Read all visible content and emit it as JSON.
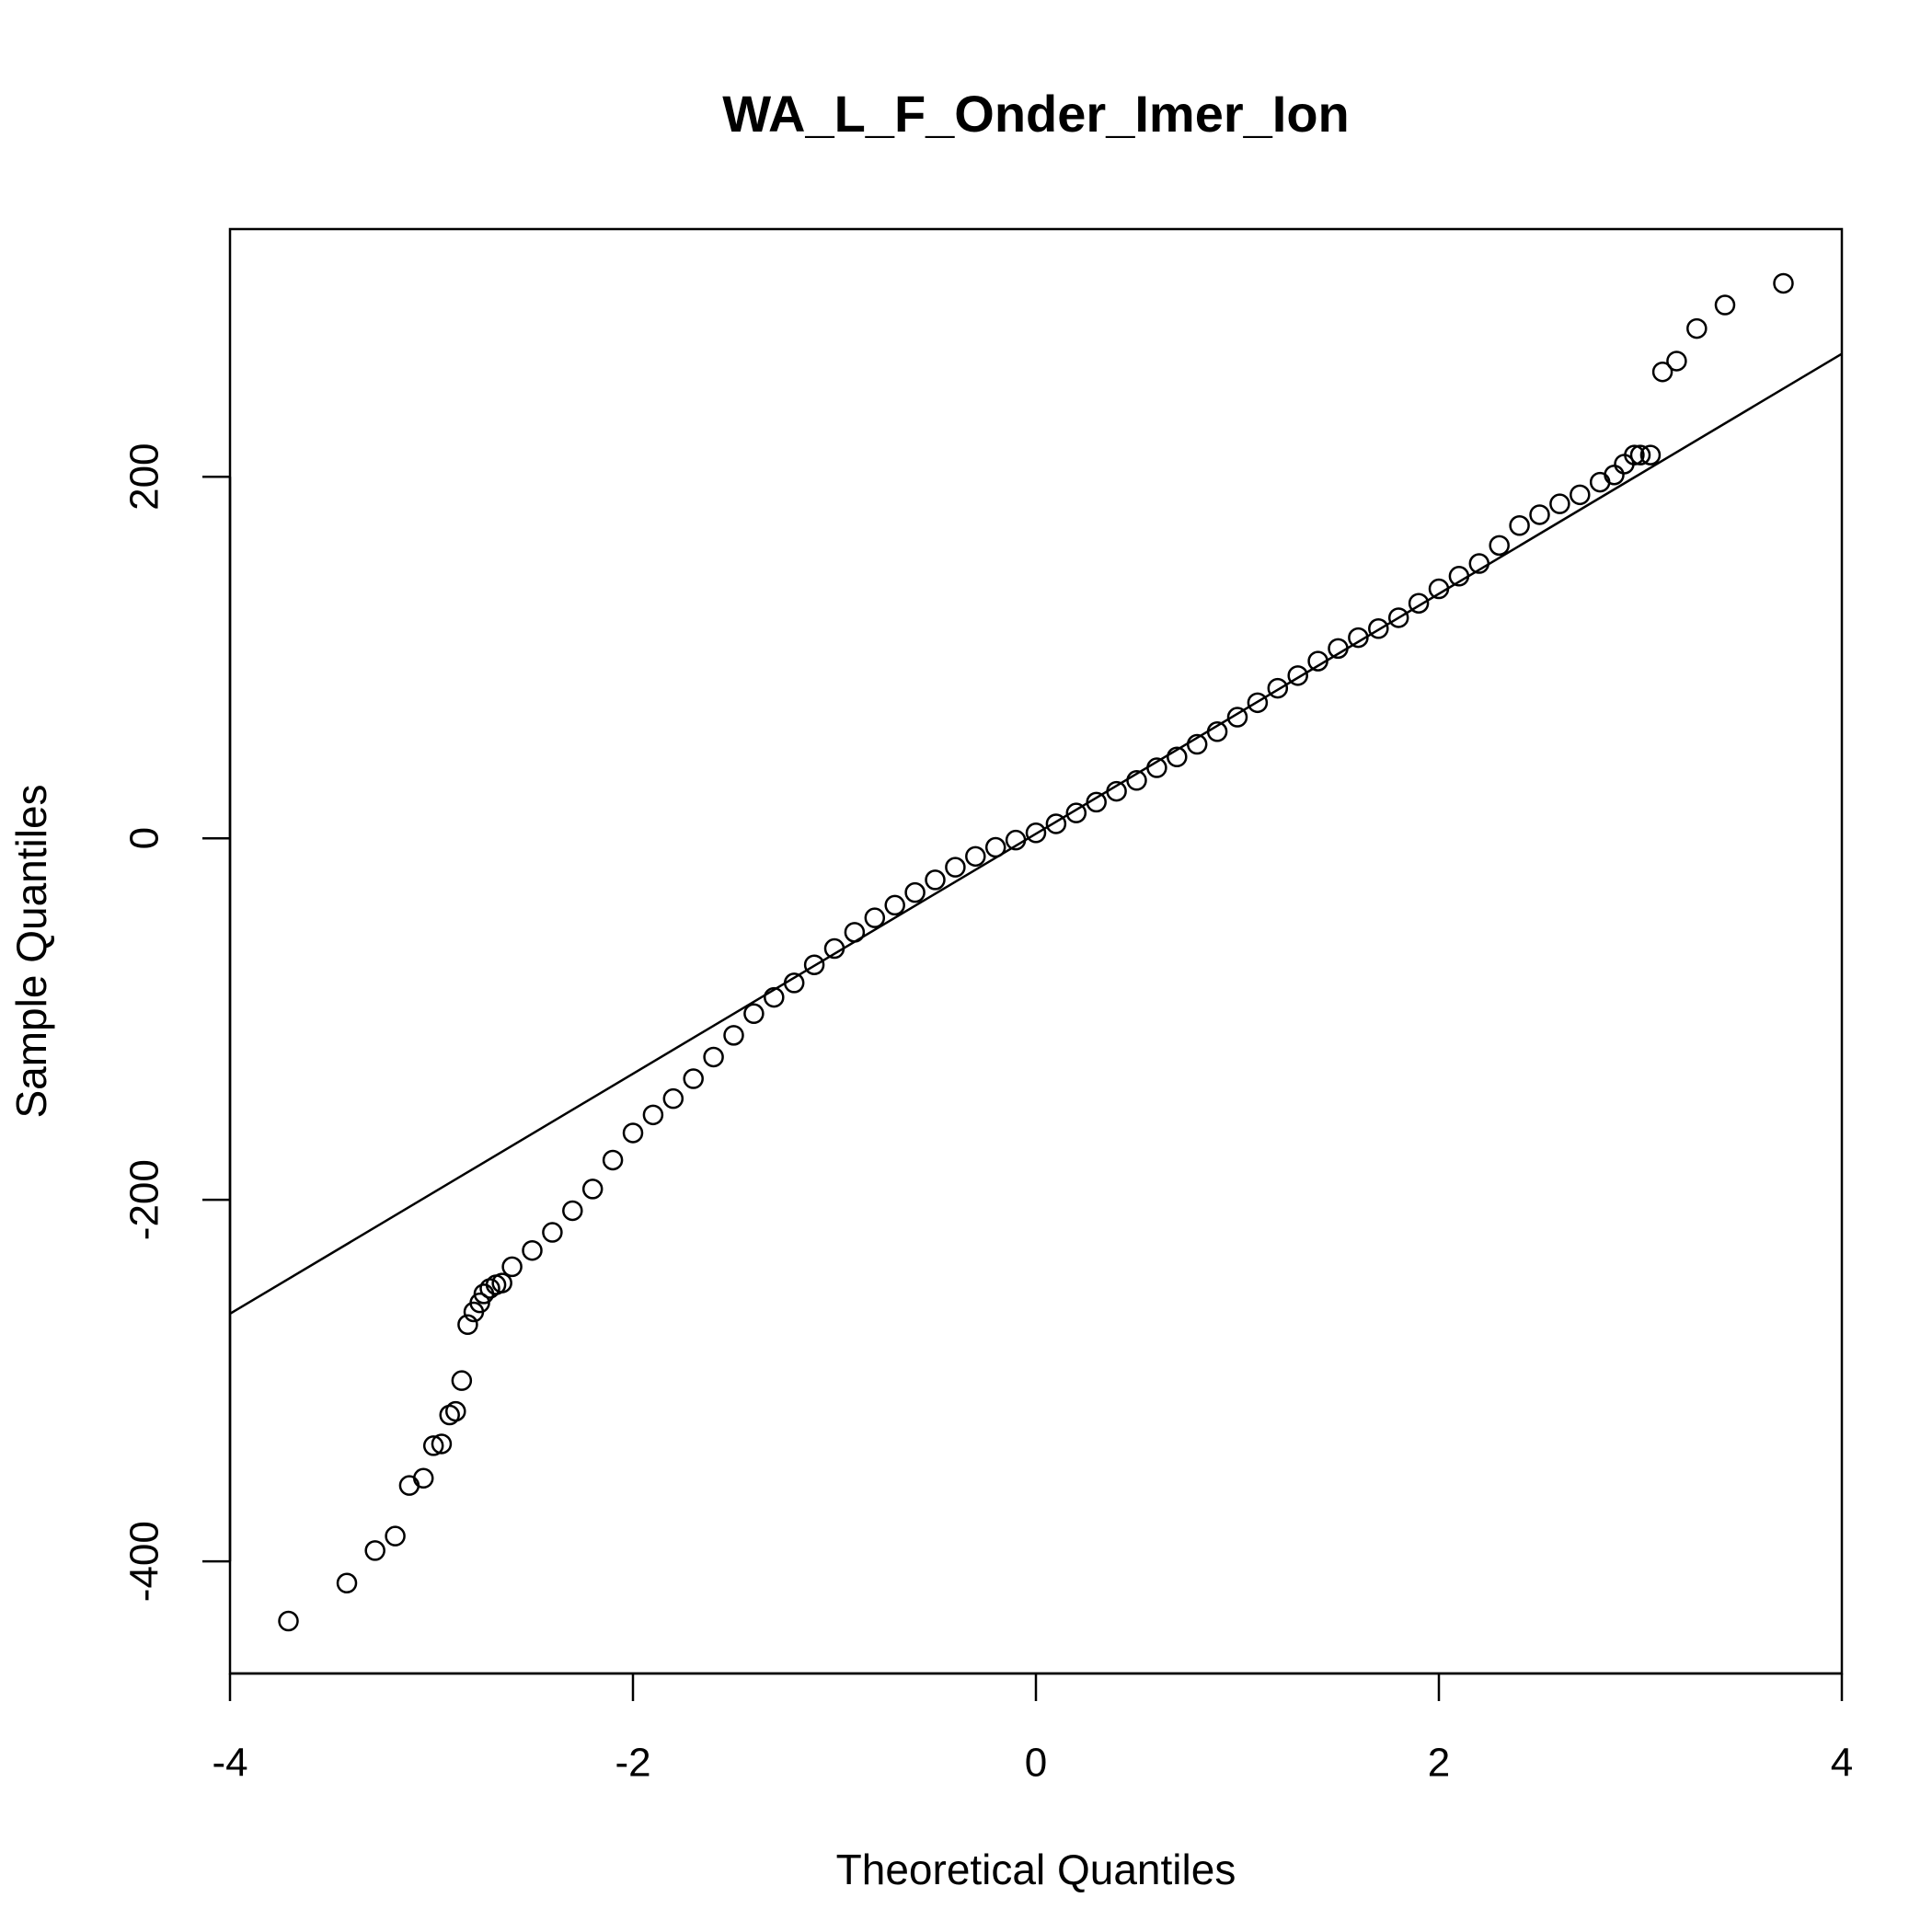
{
  "chart_data": {
    "type": "scatter",
    "title": "WA_L_F_Onder_Imer_Ion",
    "x_label": "Theoretical Quantiles",
    "y_label": "Sample Quantiles",
    "xlim": [
      -4,
      4
    ],
    "ylim": [
      -462,
      337
    ],
    "xticks": [
      -4,
      -2,
      0,
      2,
      4
    ],
    "yticks": [
      -400,
      -200,
      0,
      200
    ],
    "color": "#000000",
    "reference_line": {
      "x": [
        -4,
        4
      ],
      "y": [
        -263,
        268
      ]
    },
    "x": [
      -3.71,
      -3.42,
      -3.28,
      -3.18,
      -3.11,
      -3.04,
      -2.99,
      -2.95,
      -2.91,
      -2.88,
      -2.85,
      -2.82,
      -2.79,
      -2.76,
      -2.74,
      -2.71,
      -2.68,
      -2.65,
      -2.6,
      -2.5,
      -2.4,
      -2.3,
      -2.2,
      -2.1,
      -2.0,
      -1.9,
      -1.8,
      -1.7,
      -1.6,
      -1.5,
      -1.4,
      -1.3,
      -1.2,
      -1.1,
      -1.0,
      -0.9,
      -0.8,
      -0.7,
      -0.6,
      -0.5,
      -0.4,
      -0.3,
      -0.2,
      -0.1,
      0,
      0.1,
      0.2,
      0.3,
      0.4,
      0.5,
      0.6,
      0.7,
      0.8,
      0.9,
      1.0,
      1.1,
      1.2,
      1.3,
      1.4,
      1.5,
      1.6,
      1.7,
      1.8,
      1.9,
      2.0,
      2.1,
      2.2,
      2.3,
      2.4,
      2.5,
      2.6,
      2.7,
      2.8,
      2.87,
      2.92,
      2.97,
      3.0,
      3.05,
      3.11,
      3.18,
      3.28,
      3.42,
      3.71
    ],
    "y": [
      -433,
      -412,
      -394,
      -386,
      -358,
      -354,
      -336,
      -335,
      -319,
      -317,
      -300,
      -269,
      -262,
      -257,
      -252,
      -249,
      -247,
      -246,
      -237,
      -228,
      -218,
      -206,
      -194,
      -178,
      -163,
      -153,
      -144,
      -133,
      -121,
      -109,
      -97,
      -88,
      -80,
      -70,
      -61,
      -52,
      -44,
      -37,
      -30,
      -23,
      -16,
      -10,
      -5,
      -1,
      3,
      8,
      14,
      20,
      26,
      32,
      39,
      45,
      52,
      59,
      67,
      75,
      83,
      90,
      98,
      105,
      111,
      116,
      122,
      130,
      138,
      145,
      152,
      162,
      173,
      179,
      185,
      190,
      197,
      201,
      207,
      212,
      212,
      212,
      258,
      264,
      282,
      295,
      307
    ]
  }
}
